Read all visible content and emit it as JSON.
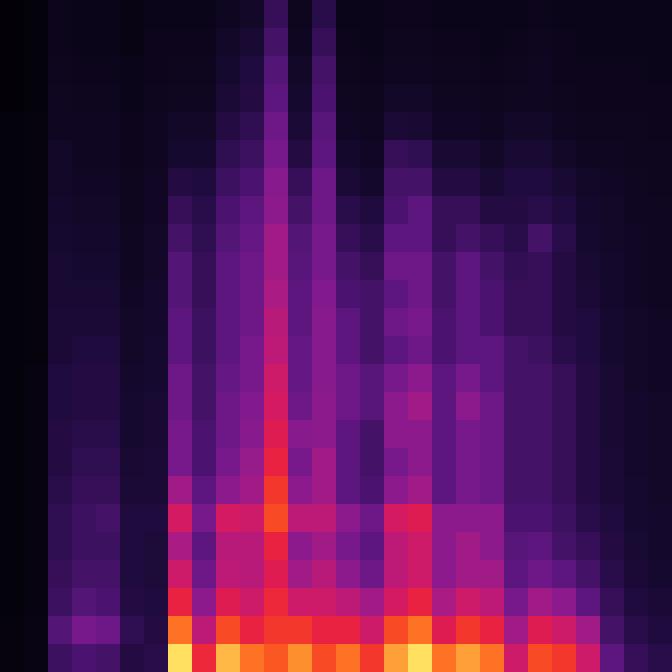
{
  "chart_data": {
    "type": "heatmap",
    "tick_labels": false,
    "zlim": [
      0,
      1
    ],
    "values": [
      [
        0.04,
        0.04,
        0.03,
        0.03,
        0.03,
        0.03,
        0.03,
        0.03,
        0.03,
        0.03,
        0.03,
        0.03,
        0.03,
        0.03,
        0.03,
        0.03,
        0.03,
        0.03,
        0.03,
        0.03,
        0.02,
        0.02,
        0.02,
        0.02
      ],
      [
        0.06,
        0.06,
        0.05,
        0.05,
        0.05,
        0.05,
        0.05,
        0.05,
        0.05,
        0.05,
        0.05,
        0.04,
        0.04,
        0.04,
        0.04,
        0.04,
        0.04,
        0.04,
        0.04,
        0.04,
        0.03,
        0.03,
        0.03,
        0.03
      ],
      [
        0.28,
        0.34,
        0.28,
        0.26,
        0.24,
        0.24,
        0.22,
        0.2,
        0.2,
        0.18,
        0.18,
        0.16,
        0.16,
        0.15,
        0.15,
        0.14,
        0.13,
        0.12,
        0.12,
        0.1,
        0.1,
        0.09,
        0.08,
        0.08
      ],
      [
        0.32,
        0.42,
        0.34,
        0.3,
        0.28,
        0.28,
        0.26,
        0.24,
        0.22,
        0.2,
        0.2,
        0.18,
        0.16,
        0.15,
        0.14,
        0.13,
        0.12,
        0.11,
        0.1,
        0.1,
        0.09,
        0.08,
        0.07,
        0.07
      ],
      [
        0.3,
        0.4,
        0.32,
        0.3,
        0.28,
        0.3,
        0.26,
        0.24,
        0.22,
        0.2,
        0.2,
        0.18,
        0.16,
        0.15,
        0.14,
        0.13,
        0.12,
        0.11,
        0.1,
        0.1,
        0.09,
        0.08,
        0.07,
        0.07
      ],
      [
        0.2,
        0.24,
        0.2,
        0.18,
        0.18,
        0.18,
        0.16,
        0.15,
        0.14,
        0.14,
        0.13,
        0.12,
        0.12,
        0.11,
        0.1,
        0.1,
        0.09,
        0.09,
        0.08,
        0.08,
        0.07,
        0.07,
        0.06,
        0.06
      ],
      [
        0.22,
        0.2,
        0.18,
        0.17,
        0.17,
        0.18,
        0.16,
        0.16,
        0.15,
        0.15,
        0.14,
        0.14,
        0.13,
        0.13,
        0.12,
        0.12,
        0.11,
        0.11,
        0.1,
        0.1,
        0.09,
        0.08,
        0.08,
        0.07
      ],
      [
        1.0,
        0.86,
        0.7,
        0.6,
        0.52,
        0.62,
        0.5,
        0.42,
        0.42,
        0.4,
        0.4,
        0.36,
        0.36,
        0.34,
        0.34,
        0.3,
        0.26,
        0.2,
        0.14,
        0.12,
        0.1,
        0.09,
        0.08,
        0.07
      ],
      [
        0.72,
        0.56,
        0.46,
        0.4,
        0.36,
        0.42,
        0.36,
        0.32,
        0.32,
        0.3,
        0.3,
        0.28,
        0.28,
        0.26,
        0.26,
        0.24,
        0.22,
        0.18,
        0.14,
        0.12,
        0.1,
        0.09,
        0.08,
        0.07
      ],
      [
        0.95,
        0.8,
        0.66,
        0.56,
        0.55,
        0.62,
        0.46,
        0.42,
        0.4,
        0.4,
        0.38,
        0.36,
        0.36,
        0.36,
        0.36,
        0.34,
        0.32,
        0.28,
        0.24,
        0.2,
        0.16,
        0.14,
        0.12,
        0.1
      ],
      [
        0.86,
        0.7,
        0.6,
        0.55,
        0.55,
        0.6,
        0.5,
        0.48,
        0.45,
        0.44,
        0.42,
        0.42,
        0.4,
        0.4,
        0.4,
        0.38,
        0.36,
        0.32,
        0.28,
        0.24,
        0.2,
        0.18,
        0.15,
        0.12
      ],
      [
        0.82,
        0.76,
        0.72,
        0.66,
        0.7,
        0.8,
        0.76,
        0.7,
        0.66,
        0.62,
        0.6,
        0.56,
        0.55,
        0.52,
        0.5,
        0.5,
        0.46,
        0.45,
        0.42,
        0.4,
        0.36,
        0.34,
        0.3,
        0.26
      ],
      [
        0.9,
        0.76,
        0.6,
        0.5,
        0.46,
        0.56,
        0.46,
        0.42,
        0.45,
        0.4,
        0.38,
        0.38,
        0.36,
        0.36,
        0.35,
        0.34,
        0.3,
        0.26,
        0.2,
        0.16,
        0.14,
        0.12,
        0.1,
        0.09
      ],
      [
        0.8,
        0.7,
        0.6,
        0.55,
        0.5,
        0.56,
        0.5,
        0.5,
        0.46,
        0.46,
        0.45,
        0.45,
        0.45,
        0.44,
        0.42,
        0.42,
        0.4,
        0.4,
        0.36,
        0.35,
        0.32,
        0.3,
        0.26,
        0.22
      ],
      [
        0.86,
        0.7,
        0.56,
        0.46,
        0.42,
        0.46,
        0.36,
        0.36,
        0.36,
        0.4,
        0.4,
        0.36,
        0.36,
        0.32,
        0.3,
        0.26,
        0.22,
        0.16,
        0.13,
        0.11,
        0.1,
        0.09,
        0.08,
        0.07
      ],
      [
        0.76,
        0.6,
        0.5,
        0.4,
        0.36,
        0.4,
        0.32,
        0.3,
        0.3,
        0.35,
        0.35,
        0.3,
        0.3,
        0.3,
        0.26,
        0.22,
        0.18,
        0.13,
        0.11,
        0.1,
        0.09,
        0.08,
        0.07,
        0.07
      ],
      [
        0.92,
        0.8,
        0.62,
        0.56,
        0.56,
        0.62,
        0.46,
        0.42,
        0.46,
        0.46,
        0.42,
        0.36,
        0.4,
        0.36,
        0.4,
        0.36,
        0.32,
        0.3,
        0.26,
        0.16,
        0.12,
        0.1,
        0.09,
        0.08
      ],
      [
        1.0,
        0.86,
        0.7,
        0.6,
        0.6,
        0.66,
        0.5,
        0.46,
        0.46,
        0.5,
        0.46,
        0.4,
        0.42,
        0.4,
        0.4,
        0.36,
        0.36,
        0.3,
        0.24,
        0.15,
        0.12,
        0.1,
        0.09,
        0.08
      ],
      [
        0.86,
        0.66,
        0.52,
        0.46,
        0.46,
        0.46,
        0.36,
        0.36,
        0.36,
        0.36,
        0.36,
        0.32,
        0.32,
        0.3,
        0.3,
        0.26,
        0.26,
        0.2,
        0.15,
        0.11,
        0.1,
        0.09,
        0.08,
        0.07
      ],
      [
        0.92,
        0.76,
        0.6,
        0.5,
        0.5,
        0.46,
        0.42,
        0.42,
        0.42,
        0.46,
        0.42,
        0.36,
        0.36,
        0.36,
        0.36,
        0.3,
        0.26,
        0.2,
        0.15,
        0.11,
        0.1,
        0.09,
        0.08,
        0.07
      ],
      [
        0.86,
        0.7,
        0.56,
        0.5,
        0.46,
        0.46,
        0.4,
        0.4,
        0.4,
        0.4,
        0.36,
        0.36,
        0.32,
        0.32,
        0.3,
        0.26,
        0.2,
        0.15,
        0.12,
        0.1,
        0.09,
        0.08,
        0.07,
        0.07
      ],
      [
        0.6,
        0.5,
        0.42,
        0.36,
        0.35,
        0.32,
        0.3,
        0.3,
        0.3,
        0.3,
        0.3,
        0.3,
        0.26,
        0.26,
        0.25,
        0.22,
        0.2,
        0.18,
        0.15,
        0.12,
        0.1,
        0.09,
        0.08,
        0.07
      ],
      [
        0.8,
        0.66,
        0.5,
        0.4,
        0.36,
        0.32,
        0.3,
        0.3,
        0.3,
        0.3,
        0.3,
        0.28,
        0.26,
        0.26,
        0.26,
        0.3,
        0.22,
        0.18,
        0.15,
        0.12,
        0.1,
        0.1,
        0.09,
        0.08
      ],
      [
        0.76,
        0.6,
        0.46,
        0.36,
        0.3,
        0.28,
        0.26,
        0.26,
        0.26,
        0.26,
        0.26,
        0.22,
        0.2,
        0.2,
        0.2,
        0.22,
        0.18,
        0.15,
        0.12,
        0.1,
        0.09,
        0.08,
        0.08,
        0.07
      ],
      [
        0.6,
        0.5,
        0.36,
        0.3,
        0.26,
        0.22,
        0.2,
        0.2,
        0.2,
        0.2,
        0.2,
        0.18,
        0.18,
        0.16,
        0.15,
        0.14,
        0.13,
        0.12,
        0.1,
        0.09,
        0.08,
        0.08,
        0.07,
        0.07
      ],
      [
        0.36,
        0.3,
        0.26,
        0.22,
        0.2,
        0.18,
        0.16,
        0.16,
        0.15,
        0.15,
        0.15,
        0.14,
        0.14,
        0.13,
        0.13,
        0.12,
        0.12,
        0.11,
        0.1,
        0.09,
        0.08,
        0.08,
        0.07,
        0.07
      ],
      [
        0.26,
        0.22,
        0.18,
        0.16,
        0.15,
        0.14,
        0.14,
        0.13,
        0.13,
        0.13,
        0.12,
        0.12,
        0.12,
        0.11,
        0.11,
        0.11,
        0.1,
        0.1,
        0.09,
        0.09,
        0.08,
        0.08,
        0.07,
        0.07
      ],
      [
        0.22,
        0.18,
        0.16,
        0.14,
        0.13,
        0.13,
        0.12,
        0.12,
        0.12,
        0.12,
        0.11,
        0.11,
        0.11,
        0.1,
        0.1,
        0.1,
        0.1,
        0.09,
        0.09,
        0.08,
        0.08,
        0.07,
        0.07,
        0.07
      ]
    ]
  }
}
